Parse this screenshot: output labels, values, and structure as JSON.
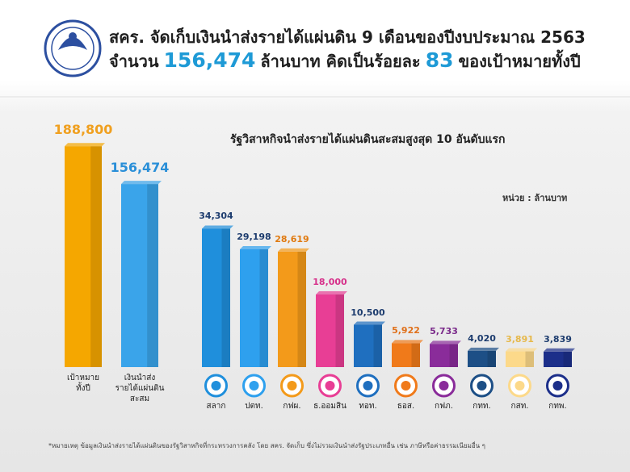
{
  "chart_data": [
    {
      "type": "bar",
      "title_parts": [
        {
          "text": "สคร. จัดเก็บเงินนำส่งรายได้แผ่นดิน 9 เดือนของปีงบประมาณ 2563"
        }
      ],
      "title2_parts": [
        {
          "text": "จำนวน",
          "color": "#1f1f1f"
        },
        {
          "text": "156,474",
          "color": "#1e9ad6"
        },
        {
          "text": "ล้านบาท คิดเป็นร้อยละ",
          "color": "#1f1f1f"
        },
        {
          "text": "83",
          "color": "#1e9ad6"
        },
        {
          "text": "ของเป้าหมายทั้งปี",
          "color": "#1f1f1f"
        }
      ],
      "categories": [
        "เป้าหมาย\nทั้งปี",
        "เงินนำส่ง\nรายได้แผ่นดิน\nสะสม"
      ],
      "values": [
        188800,
        156474
      ],
      "value_labels": [
        "188,800",
        "156,474"
      ],
      "colors": [
        "#f5a700",
        "#3aa4ea"
      ],
      "label_colors": [
        "#f0a020",
        "#2a8fd8"
      ],
      "ylim": [
        0,
        200000
      ]
    },
    {
      "type": "bar",
      "title": "รัฐวิสาหกิจนำส่งรายได้แผ่นดินสะสมสูงสุด 10 อันดับแรก",
      "unit": "หน่วย : ล้านบาท",
      "categories": [
        "สลาก",
        "ปตท.",
        "กฟผ.",
        "ธ.ออมสิน",
        "ทอท.",
        "ธอส.",
        "กฟภ.",
        "กทท.",
        "กสท.",
        "กทพ."
      ],
      "values": [
        34304,
        29198,
        28619,
        18000,
        10500,
        5922,
        5733,
        4020,
        3891,
        3839
      ],
      "value_labels": [
        "34,304",
        "29,198",
        "28,619",
        "18,000",
        "10,500",
        "5,922",
        "5,733",
        "4,020",
        "3,891",
        "3,839"
      ],
      "colors": [
        "#1f8fdc",
        "#2ea0ee",
        "#f39a1a",
        "#e83e95",
        "#1f6fbf",
        "#f07a1a",
        "#8a2c9a",
        "#1d4f86",
        "#fcd98a",
        "#1c2f8a"
      ],
      "label_colors": [
        "#1d3c6e",
        "#1d3c6e",
        "#e07a10",
        "#d6308a",
        "#1d3c6e",
        "#e0701a",
        "#7a2a8a",
        "#1d3c6e",
        "#e6b84a",
        "#1d3c6e"
      ],
      "ylim": [
        0,
        40000
      ],
      "footnote": "*หมายเหตุ ข้อมูลเงินนำส่งรายได้แผ่นดินของรัฐวิสาหกิจที่กระทรวงการคลัง โดย สคร. จัดเก็บ ซึ่งไม่รวมเงินนำส่งรัฐประเภทอื่น เช่น ภาษีหรือค่าธรรมเนียมอื่น ๆ"
    }
  ]
}
